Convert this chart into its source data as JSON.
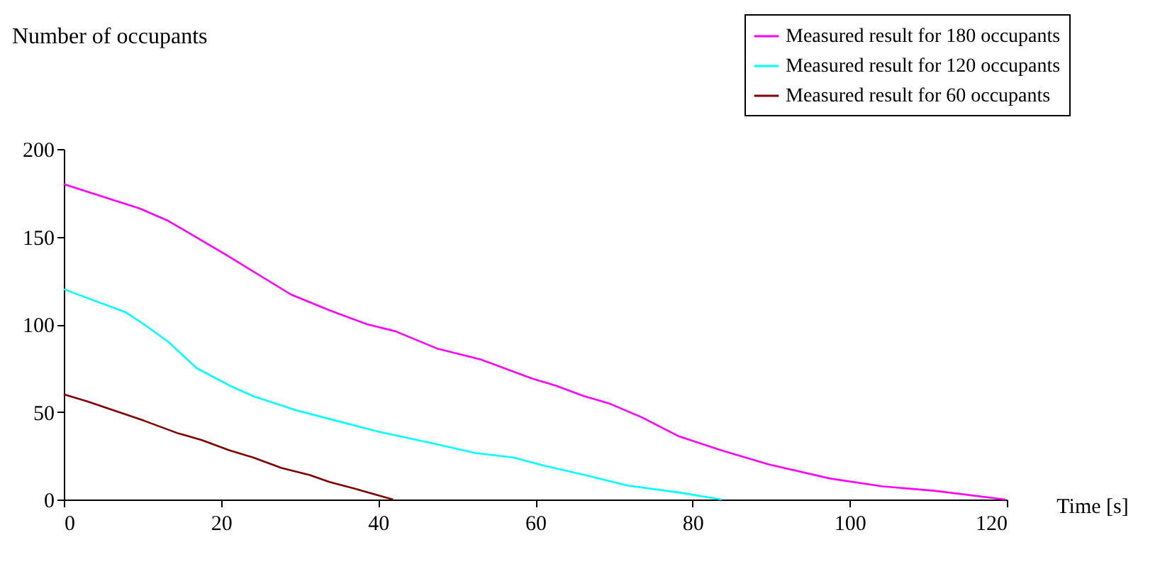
{
  "chart_data": {
    "type": "line",
    "xlabel": "Time [s]",
    "ylabel": "Number of occupants",
    "xlim": [
      0,
      120
    ],
    "xticks": [
      0,
      20,
      40,
      60,
      80,
      100,
      120
    ],
    "ylim": [
      0,
      200
    ],
    "yticks": [
      0,
      50,
      100,
      150,
      200
    ],
    "grid": false,
    "legend": "top right",
    "marker": "none",
    "line_style": "solid",
    "series": [
      {
        "name": "Measured result for 180 occupants",
        "color": "#ff00ff",
        "x": [
          0,
          9.7,
          13.3,
          20.5,
          28.9,
          33.8,
          38.6,
          42.2,
          47.6,
          53,
          59.6,
          62.6,
          66.2,
          69.3,
          73.5,
          78.3,
          83.7,
          89.7,
          97.5,
          104.2,
          110.8,
          119.8
        ],
        "values": [
          180,
          166,
          159,
          140,
          117,
          108,
          100,
          96,
          86,
          80,
          69,
          65,
          59,
          55,
          47,
          36,
          28,
          20,
          12,
          7.5,
          5,
          0
        ]
      },
      {
        "name": "Measured result for 120 occupants",
        "color": "#00ffff",
        "x": [
          0,
          7.8,
          10.2,
          13.3,
          16.9,
          21.1,
          24.1,
          29.5,
          33.8,
          39.8,
          47,
          52.4,
          57.2,
          61.4,
          66.8,
          71.7,
          78.3,
          83.7
        ],
        "values": [
          120,
          107,
          100,
          90,
          75,
          65,
          59,
          51,
          46,
          39,
          32,
          26.5,
          24,
          19,
          13.5,
          8,
          4,
          0
        ]
      },
      {
        "name": "Measured result for 60 occupants",
        "color": "#800000",
        "x": [
          0,
          3,
          10.2,
          14.4,
          17.5,
          21.1,
          24.1,
          27.7,
          31.3,
          33.8,
          36.8,
          41.9
        ],
        "values": [
          60,
          56,
          45,
          38,
          34,
          28,
          24,
          18,
          14,
          10,
          6.5,
          0
        ]
      }
    ]
  }
}
